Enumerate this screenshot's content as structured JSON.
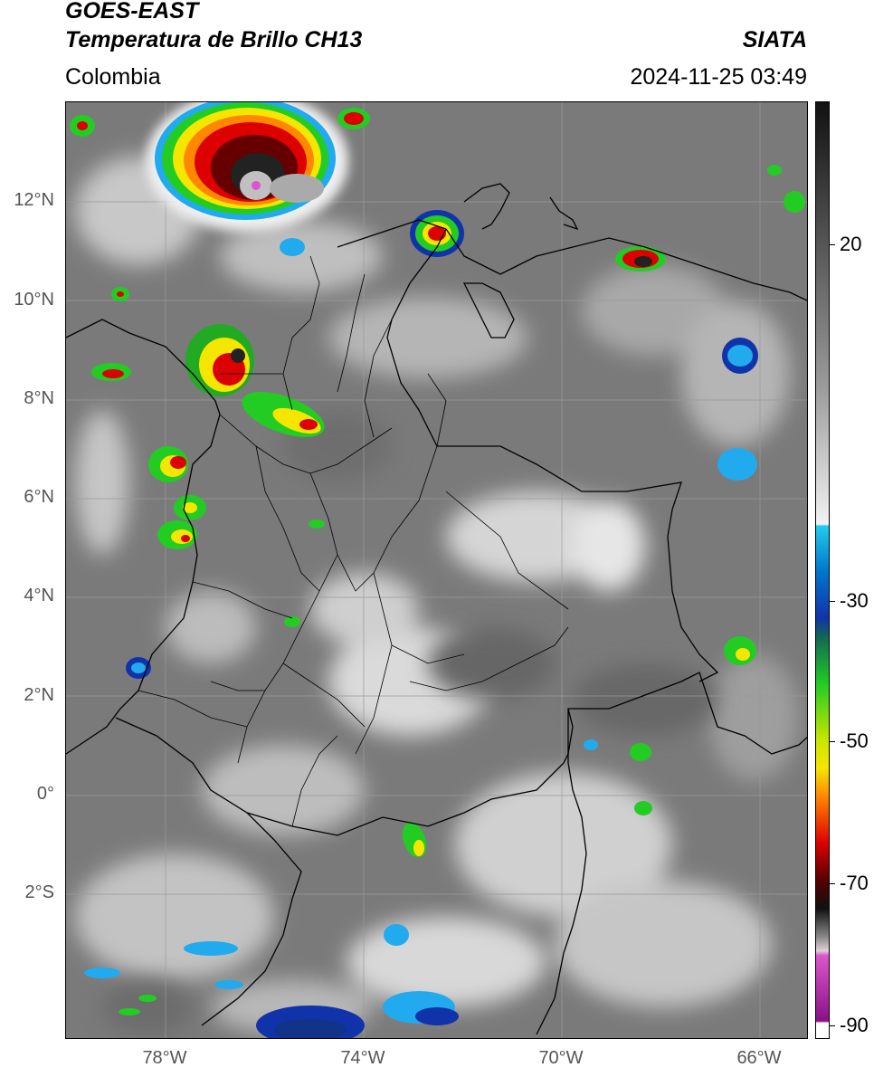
{
  "header": {
    "satellite": "GOES-EAST",
    "product": "Temperatura de Brillo CH13",
    "organization": "SIATA",
    "region": "Colombia",
    "datetime": "2024-11-25 03:49"
  },
  "map": {
    "lat_labels": [
      "12°N",
      "10°N",
      "8°N",
      "6°N",
      "4°N",
      "2°N",
      "0°",
      "2°S"
    ],
    "lon_labels": [
      "78°W",
      "74°W",
      "70°W",
      "66°W"
    ],
    "gridlines": true,
    "features": [
      "country borders",
      "department borders",
      "cloud brightness temperature field"
    ]
  },
  "colorbar": {
    "labels": [
      "20",
      "-30",
      "-50",
      "-70",
      "-90"
    ],
    "colors": {
      "warm_gray_top": "#111111",
      "gray_mid": "#888888",
      "light": "#f2f2f2",
      "cyan": "#22ccee",
      "blue": "#1133aa",
      "green": "#22cc22",
      "yellow": "#f5e600",
      "orange": "#ff8800",
      "red": "#dd0000",
      "dark_red": "#550000",
      "magenta": "#dd55cc",
      "purple": "#881188"
    }
  }
}
